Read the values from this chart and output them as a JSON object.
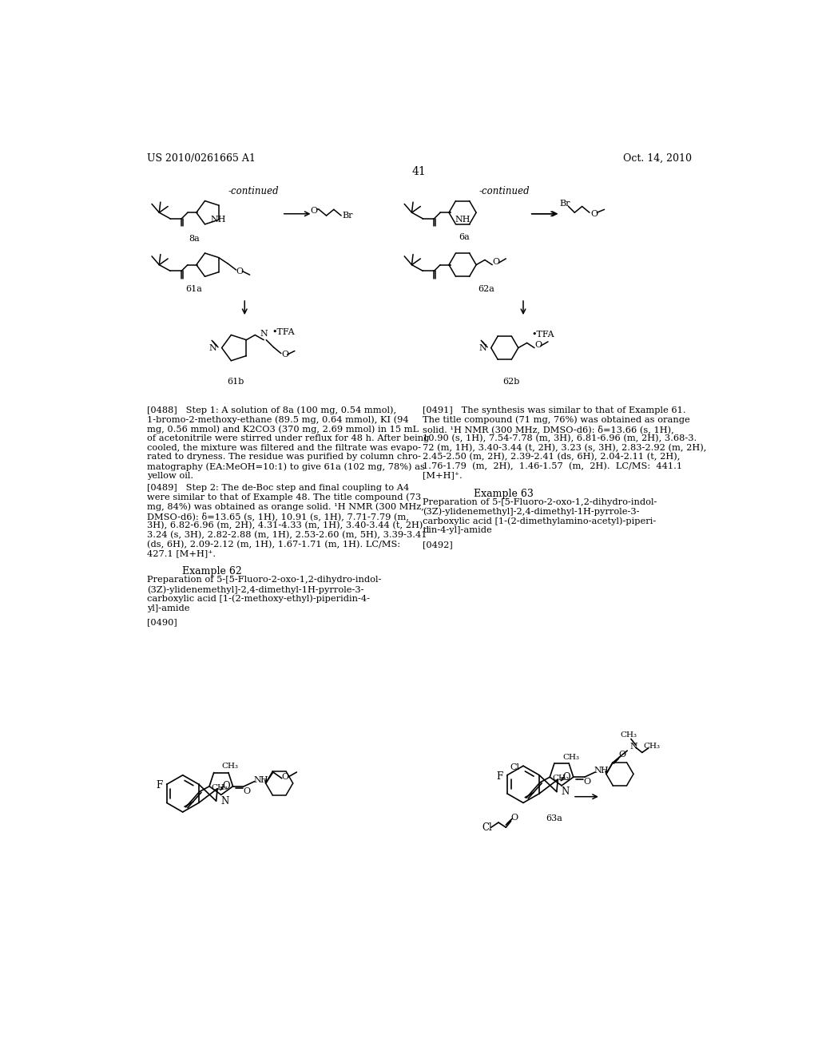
{
  "background_color": "#ffffff",
  "page_header_left": "US 2010/0261665 A1",
  "page_header_right": "Oct. 14, 2010",
  "page_number": "41",
  "top_left_label": "-continued",
  "top_right_label": "-continued",
  "p488_lines": [
    "[0488]   Step 1: A solution of 8a (100 mg, 0.54 mmol),",
    "1-bromo-2-methoxy-ethane (89.5 mg, 0.64 mmol), KI (94",
    "mg, 0.56 mmol) and K2CO3 (370 mg, 2.69 mmol) in 15 mL",
    "of acetonitrile were stirred under reflux for 48 h. After being",
    "cooled, the mixture was filtered and the filtrate was evapo-",
    "rated to dryness. The residue was purified by column chro-",
    "matography (EA:MeOH=10:1) to give 61a (102 mg, 78%) as",
    "yellow oil."
  ],
  "p489_lines": [
    "[0489]   Step 2: The de-Boc step and final coupling to A4",
    "were similar to that of Example 48. The title compound (73",
    "mg, 84%) was obtained as orange solid. ¹H NMR (300 MHz,",
    "DMSO-d6): δ=13.65 (s, 1H), 10.91 (s, 1H), 7.71-7.79 (m,",
    "3H), 6.82-6.96 (m, 2H), 4.31-4.33 (m, 1H), 3.40-3.44 (t, 2H),",
    "3.24 (s, 3H), 2.82-2.88 (m, 1H), 2.53-2.60 (m, 5H), 3.39-3.41",
    "(ds, 6H), 2.09-2.12 (m, 1H), 1.67-1.71 (m, 1H). LC/MS:",
    "427.1 [M+H]⁺."
  ],
  "ex62_title": "Example 62",
  "ex62_prep_lines": [
    "Preparation of 5-[5-Fluoro-2-oxo-1,2-dihydro-indol-",
    "(3Z)-ylidenemethyl]-2,4-dimethyl-1H-pyrrole-3-",
    "carboxylic acid [1-(2-methoxy-ethyl)-piperidin-4-",
    "yl]-amide"
  ],
  "p490": "[0490]",
  "p491_lines": [
    "[0491]   The synthesis was similar to that of Example 61.",
    "The title compound (71 mg, 76%) was obtained as orange",
    "solid. ¹H NMR (300 MHz, DMSO-d6): δ=13.66 (s, 1H),",
    "10.90 (s, 1H), 7.54-7.78 (m, 3H), 6.81-6.96 (m, 2H), 3.68-3.",
    "72 (m, 1H), 3.40-3.44 (t, 2H), 3.23 (s, 3H), 2.83-2.92 (m, 2H),",
    "2.45-2.50 (m, 2H), 2.39-2.41 (ds, 6H), 2.04-2.11 (t, 2H),",
    "1.76-1.79  (m,  2H),  1.46-1.57  (m,  2H).  LC/MS:  441.1",
    "[M+H]⁺."
  ],
  "ex63_title": "Example 63",
  "ex63_prep_lines": [
    "Preparation of 5-[5-Fluoro-2-oxo-1,2-dihydro-indol-",
    "(3Z)-ylidenemethyl]-2,4-dimethyl-1H-pyrrole-3-",
    "carboxylic acid [1-(2-dimethylamino-acetyl)-piperi-",
    "din-4-yl]-amide"
  ],
  "p492": "[0492]"
}
